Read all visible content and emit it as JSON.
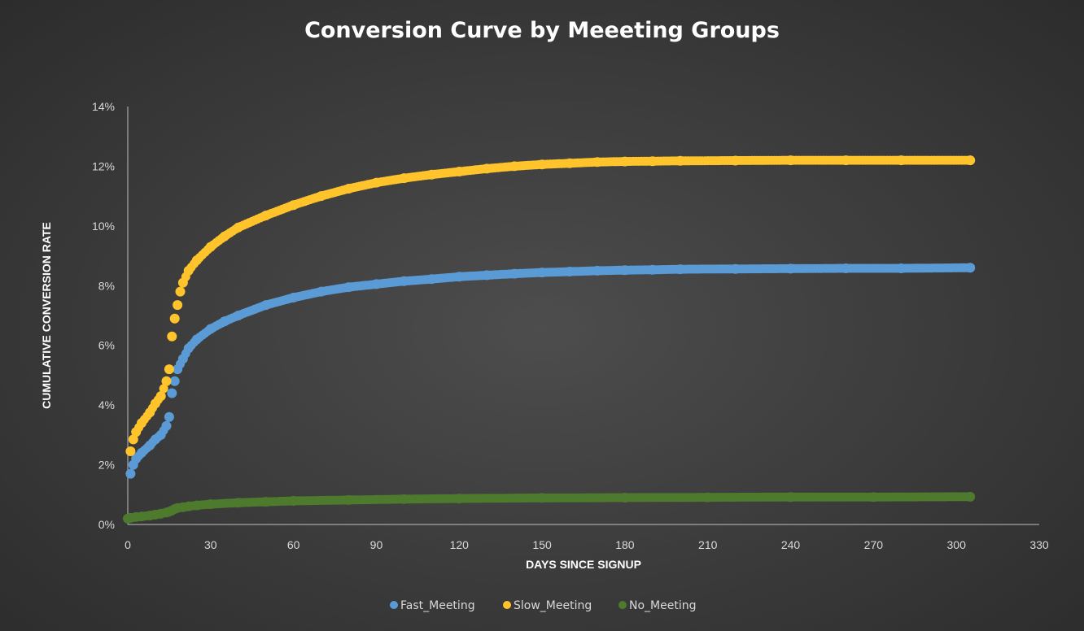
{
  "colors": {
    "background": "#3a3a3a",
    "axis": "#bfbfbf",
    "text": "#d9d9d9",
    "title": "#ffffff"
  },
  "chart_data": {
    "type": "scatter",
    "title": "Conversion Curve by Meeeting Groups",
    "xlabel": "DAYS SINCE SIGNUP",
    "ylabel": "CUMULATIVE CONVERSION RATE",
    "xlim": [
      0,
      330
    ],
    "ylim": [
      0,
      14
    ],
    "x_ticks": [
      0,
      30,
      60,
      90,
      120,
      150,
      180,
      210,
      240,
      270,
      300,
      330
    ],
    "y_ticks": [
      "0%",
      "2%",
      "4%",
      "6%",
      "8%",
      "10%",
      "12%",
      "14%"
    ],
    "y_tick_values": [
      0,
      2,
      4,
      6,
      8,
      10,
      12,
      14
    ],
    "grid": false,
    "legend_position": "bottom",
    "series": [
      {
        "name": "Fast_Meeting",
        "color": "#5b9bd5",
        "x": [
          1,
          2,
          3,
          5,
          8,
          10,
          12,
          14,
          15,
          16,
          17,
          18,
          20,
          22,
          25,
          30,
          35,
          40,
          50,
          60,
          70,
          80,
          90,
          100,
          110,
          120,
          130,
          140,
          150,
          160,
          170,
          180,
          190,
          200,
          220,
          240,
          260,
          280,
          305
        ],
        "values": [
          1.7,
          2.0,
          2.2,
          2.4,
          2.65,
          2.85,
          3.0,
          3.3,
          3.6,
          4.4,
          4.8,
          5.2,
          5.55,
          5.9,
          6.2,
          6.55,
          6.8,
          7.0,
          7.35,
          7.6,
          7.8,
          7.95,
          8.05,
          8.15,
          8.22,
          8.3,
          8.35,
          8.4,
          8.44,
          8.47,
          8.5,
          8.52,
          8.53,
          8.55,
          8.56,
          8.57,
          8.58,
          8.58,
          8.6
        ]
      },
      {
        "name": "Slow_Meeting",
        "color": "#ffc42b",
        "x": [
          1,
          2,
          3,
          5,
          8,
          10,
          12,
          14,
          15,
          16,
          17,
          18,
          19,
          20,
          22,
          25,
          30,
          35,
          40,
          50,
          60,
          70,
          80,
          90,
          100,
          110,
          120,
          130,
          140,
          150,
          160,
          170,
          180,
          190,
          200,
          220,
          240,
          260,
          280,
          305
        ],
        "values": [
          2.45,
          2.85,
          3.1,
          3.4,
          3.75,
          4.05,
          4.3,
          4.8,
          5.2,
          6.3,
          6.9,
          7.35,
          7.8,
          8.1,
          8.5,
          8.85,
          9.3,
          9.65,
          9.95,
          10.35,
          10.7,
          11.0,
          11.25,
          11.45,
          11.6,
          11.72,
          11.82,
          11.92,
          12.0,
          12.06,
          12.1,
          12.14,
          12.16,
          12.17,
          12.18,
          12.19,
          12.2,
          12.2,
          12.2,
          12.2
        ]
      },
      {
        "name": "No_Meeting",
        "color": "#4e7a2d",
        "x": [
          0,
          1,
          3,
          5,
          8,
          10,
          12,
          14,
          15,
          16,
          17,
          18,
          20,
          22,
          25,
          30,
          40,
          50,
          60,
          80,
          100,
          120,
          150,
          180,
          210,
          240,
          270,
          305
        ],
        "values": [
          0.2,
          0.22,
          0.25,
          0.27,
          0.3,
          0.33,
          0.36,
          0.4,
          0.43,
          0.47,
          0.52,
          0.55,
          0.58,
          0.61,
          0.64,
          0.68,
          0.73,
          0.76,
          0.79,
          0.82,
          0.85,
          0.87,
          0.89,
          0.9,
          0.91,
          0.92,
          0.92,
          0.93
        ]
      }
    ]
  }
}
